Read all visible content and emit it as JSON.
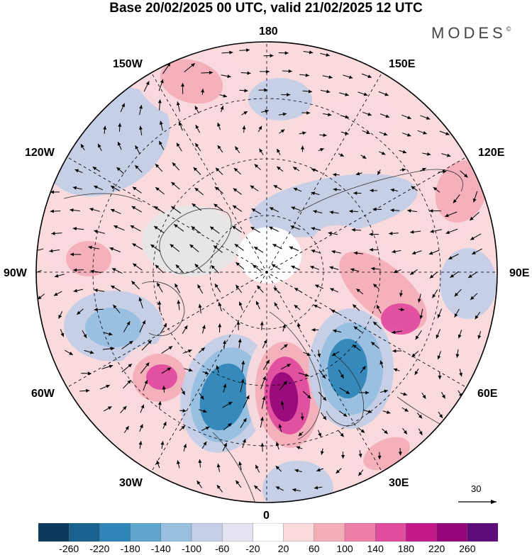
{
  "title": "Base 20/02/2025 00 UTC, valid 21/02/2025 12 UTC",
  "brand": {
    "name": "MODES",
    "mark": "©"
  },
  "longitude_labels": {
    "top": "180",
    "bottom": "0",
    "left": "90W",
    "right": "90E",
    "upper_left_outer": "150W",
    "upper_left": "120W",
    "upper_right_outer": "150E",
    "upper_right": "120E",
    "lower_left": "60W",
    "lower_left_outer": "30W",
    "lower_right": "60E",
    "lower_right_outer": "30E"
  },
  "vector_scale": {
    "label": "30"
  },
  "colorbar": {
    "ticks": [
      "-260",
      "-220",
      "-180",
      "-140",
      "-100",
      "-60",
      "-20",
      "20",
      "60",
      "100",
      "140",
      "180",
      "220",
      "260"
    ],
    "colors": [
      "#0d3a5c",
      "#19628f",
      "#2f86b8",
      "#5ea6cd",
      "#97bfe0",
      "#c4cfe7",
      "#e4e4f2",
      "#ffffff",
      "#f9d9dc",
      "#f3aeb8",
      "#ee7fa9",
      "#e04c9e",
      "#c4188a",
      "#96087a",
      "#5e0c7a"
    ]
  },
  "colors": {
    "neg_strong": "#2f86b8",
    "neg_mid": "#97bfe0",
    "neg_weak": "#c4cfe7",
    "pos_weak": "#f9d9dc",
    "pos_mid": "#f3aeb8",
    "pos_strong": "#e04c9e",
    "pos_max": "#96087a",
    "land_gray": "#e6e6e6"
  }
}
